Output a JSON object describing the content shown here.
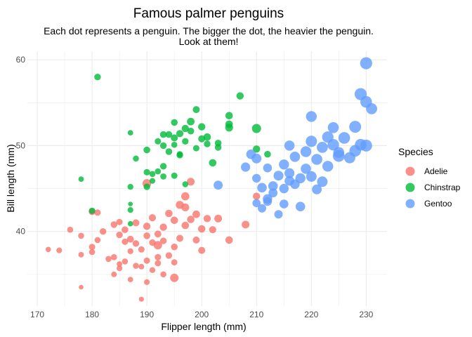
{
  "chart_data": {
    "type": "scatter",
    "title": "Famous palmer penguins",
    "subtitle_lines": [
      "Each dot represents a penguin. The bigger the dot, the heavier the penguin.",
      "Look at them!"
    ],
    "xlabel": "Flipper length (mm)",
    "ylabel": "Bill length (mm)",
    "xlim": [
      168.2,
      233.8
    ],
    "ylim": [
      31.3,
      61.0
    ],
    "x_ticks": [
      170,
      180,
      190,
      200,
      210,
      220,
      230
    ],
    "y_ticks": [
      40,
      50,
      60
    ],
    "grid": true,
    "legend": {
      "title": "Species",
      "placement": "right"
    },
    "series": [
      {
        "name": "Adelie",
        "color": "#F8766D",
        "points": [
          [
            172,
            37.9,
            3150
          ],
          [
            174,
            37.8,
            3350
          ],
          [
            176,
            40.2,
            3450
          ],
          [
            178,
            37.3,
            3300
          ],
          [
            178,
            39.5,
            3500
          ],
          [
            178,
            33.5,
            2900
          ],
          [
            180,
            42.3,
            3800
          ],
          [
            180,
            38.2,
            3600
          ],
          [
            180,
            37.6,
            3450
          ],
          [
            181,
            42.2,
            3600
          ],
          [
            181,
            39.0,
            3500
          ],
          [
            182,
            40.0,
            3700
          ],
          [
            183,
            36.8,
            3500
          ],
          [
            184,
            40.8,
            3800
          ],
          [
            184,
            37.0,
            3550
          ],
          [
            184,
            35.0,
            3300
          ],
          [
            185,
            39.6,
            3700
          ],
          [
            185,
            36.2,
            3300
          ],
          [
            185,
            41.1,
            3600
          ],
          [
            186,
            38.8,
            3650
          ],
          [
            186,
            36.5,
            3500
          ],
          [
            186,
            40.2,
            3800
          ],
          [
            187,
            37.7,
            3400
          ],
          [
            187,
            39.1,
            3850
          ],
          [
            187,
            34.4,
            3250
          ],
          [
            188,
            36.0,
            3500
          ],
          [
            188,
            38.6,
            3700
          ],
          [
            188,
            41.0,
            3900
          ],
          [
            189,
            35.9,
            3300
          ],
          [
            189,
            37.9,
            3600
          ],
          [
            189,
            32.1,
            3050
          ],
          [
            190,
            39.5,
            3750
          ],
          [
            190,
            40.6,
            4000
          ],
          [
            190,
            36.6,
            3600
          ],
          [
            190,
            34.1,
            3350
          ],
          [
            191,
            38.7,
            3700
          ],
          [
            191,
            35.5,
            3400
          ],
          [
            191,
            41.6,
            3950
          ],
          [
            192,
            36.3,
            3600
          ],
          [
            192,
            37.0,
            3650
          ],
          [
            192,
            39.7,
            3850
          ],
          [
            193,
            40.5,
            4000
          ],
          [
            193,
            38.9,
            3700
          ],
          [
            193,
            35.0,
            3500
          ],
          [
            194,
            42.1,
            4050
          ],
          [
            194,
            37.2,
            3700
          ],
          [
            195,
            41.3,
            4100
          ],
          [
            195,
            38.2,
            3800
          ],
          [
            195,
            36.4,
            3550
          ],
          [
            196,
            43.1,
            4300
          ],
          [
            196,
            39.2,
            3900
          ],
          [
            197,
            42.8,
            4250
          ],
          [
            197,
            40.7,
            4050
          ],
          [
            197,
            44.1,
            4400
          ],
          [
            198,
            41.4,
            4100
          ],
          [
            198,
            45.8,
            4200
          ],
          [
            199,
            39.0,
            3900
          ],
          [
            199,
            42.0,
            4150
          ],
          [
            200,
            40.3,
            4100
          ],
          [
            200,
            37.8,
            3900
          ],
          [
            201,
            41.5,
            4000
          ],
          [
            202,
            40.2,
            3950
          ],
          [
            203,
            41.5,
            4200
          ],
          [
            205,
            39.0,
            4100
          ],
          [
            208,
            40.8,
            4200
          ],
          [
            210,
            44.1,
            4000
          ],
          [
            195,
            34.6,
            4475
          ],
          [
            190,
            45.6,
            4600
          ],
          [
            192,
            38.4,
            4500
          ],
          [
            185,
            35.7,
            3350
          ]
        ]
      },
      {
        "name": "Chinstrap",
        "color": "#00BA38",
        "points": [
          [
            178,
            46.1,
            3250
          ],
          [
            180,
            42.4,
            3650
          ],
          [
            181,
            58.0,
            3700
          ],
          [
            187,
            51.5,
            3250
          ],
          [
            187,
            45.2,
            3400
          ],
          [
            187,
            43.2,
            2900
          ],
          [
            187,
            42.5,
            3350
          ],
          [
            187,
            40.9,
            3200
          ],
          [
            188,
            48.5,
            3500
          ],
          [
            190,
            46.9,
            3650
          ],
          [
            190,
            45.2,
            3700
          ],
          [
            190,
            49.5,
            3800
          ],
          [
            191,
            46.7,
            3500
          ],
          [
            191,
            45.9,
            3350
          ],
          [
            192,
            50.5,
            3600
          ],
          [
            192,
            47.0,
            3450
          ],
          [
            193,
            50.0,
            3700
          ],
          [
            193,
            51.3,
            3800
          ],
          [
            193,
            46.4,
            3550
          ],
          [
            194,
            49.3,
            3750
          ],
          [
            195,
            50.9,
            3900
          ],
          [
            195,
            52.7,
            3800
          ],
          [
            195,
            46.5,
            3600
          ],
          [
            195,
            50.1,
            3500
          ],
          [
            196,
            51.4,
            3950
          ],
          [
            196,
            49.0,
            3550
          ],
          [
            197,
            52.0,
            4000
          ],
          [
            197,
            50.5,
            3700
          ],
          [
            197,
            45.5,
            3500
          ],
          [
            198,
            52.8,
            4150
          ],
          [
            198,
            51.7,
            3800
          ],
          [
            199,
            49.7,
            3600
          ],
          [
            200,
            50.8,
            3900
          ],
          [
            200,
            52.2,
            4000
          ],
          [
            201,
            51.0,
            4100
          ],
          [
            201,
            50.2,
            3700
          ],
          [
            202,
            48.0,
            4050
          ],
          [
            203,
            49.8,
            3750
          ],
          [
            203,
            50.3,
            3800
          ],
          [
            205,
            53.5,
            4100
          ],
          [
            205,
            52.5,
            4050
          ],
          [
            207,
            55.8,
            4000
          ],
          [
            210,
            52.0,
            4800
          ],
          [
            210,
            49.6,
            4000
          ],
          [
            212,
            49.0,
            3800
          ],
          [
            196,
            48.9,
            3700
          ],
          [
            199,
            54.2,
            3900
          ],
          [
            205,
            52.1,
            4250
          ],
          [
            193,
            47.6,
            3700
          ],
          [
            194,
            51.3,
            3800
          ]
        ]
      },
      {
        "name": "Gentoo",
        "color": "#619CFF",
        "points": [
          [
            203,
            45.4,
            4800
          ],
          [
            208,
            47.5,
            4875
          ],
          [
            209,
            49.0,
            5000
          ],
          [
            210,
            46.2,
            4600
          ],
          [
            210,
            43.3,
            4400
          ],
          [
            211,
            45.1,
            5000
          ],
          [
            211,
            42.7,
            4475
          ],
          [
            212,
            47.4,
            4700
          ],
          [
            212,
            43.5,
            4650
          ],
          [
            213,
            45.3,
            5000
          ],
          [
            213,
            44.5,
            4750
          ],
          [
            214,
            46.5,
            5100
          ],
          [
            214,
            42.0,
            4500
          ],
          [
            215,
            47.8,
            5200
          ],
          [
            215,
            45.0,
            4900
          ],
          [
            215,
            43.2,
            4700
          ],
          [
            216,
            46.8,
            5150
          ],
          [
            216,
            50.0,
            5300
          ],
          [
            217,
            45.5,
            5000
          ],
          [
            217,
            48.7,
            5250
          ],
          [
            218,
            46.2,
            5200
          ],
          [
            218,
            42.9,
            4950
          ],
          [
            219,
            49.3,
            5500
          ],
          [
            219,
            47.3,
            5300
          ],
          [
            220,
            50.5,
            5700
          ],
          [
            220,
            46.4,
            5400
          ],
          [
            221,
            48.4,
            5600
          ],
          [
            222,
            49.8,
            5650
          ],
          [
            222,
            45.8,
            5400
          ],
          [
            223,
            51.0,
            5750
          ],
          [
            223,
            47.6,
            5500
          ],
          [
            224,
            50.1,
            5800
          ],
          [
            225,
            49.2,
            5600
          ],
          [
            225,
            48.8,
            5950
          ],
          [
            226,
            50.9,
            5850
          ],
          [
            227,
            48.6,
            5700
          ],
          [
            228,
            52.2,
            6000
          ],
          [
            228,
            49.4,
            5850
          ],
          [
            229,
            50.1,
            5900
          ],
          [
            230,
            59.6,
            6050
          ],
          [
            230,
            55.1,
            5850
          ],
          [
            230,
            50.0,
            6000
          ],
          [
            229,
            56.0,
            6050
          ],
          [
            231,
            54.3,
            5650
          ],
          [
            220,
            53.4,
            5500
          ],
          [
            210,
            48.5,
            5100
          ],
          [
            212,
            43.8,
            4900
          ],
          [
            216,
            45.9,
            5050
          ],
          [
            221,
            44.9,
            5100
          ],
          [
            224,
            52.1,
            5550
          ]
        ]
      }
    ]
  }
}
